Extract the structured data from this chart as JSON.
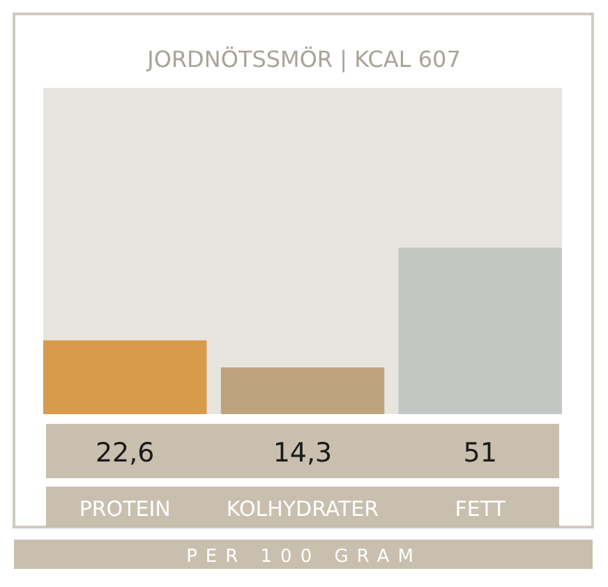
{
  "chart_data": {
    "type": "bar",
    "title": "JORDNÖTSSMÖR | KCAL 607",
    "categories": [
      "PROTEIN",
      "KOLHYDRATER",
      "FETT"
    ],
    "values": [
      22.6,
      14.3,
      51
    ],
    "colors": [
      "#d99a4a",
      "#bfa27e",
      "#c3c7c3"
    ],
    "value_labels": [
      "22,6",
      "14,3",
      "51"
    ],
    "ylim": [
      0,
      100
    ],
    "tick_labels": false,
    "grid": false,
    "annotations": [
      "PER 100 GRAM"
    ]
  }
}
